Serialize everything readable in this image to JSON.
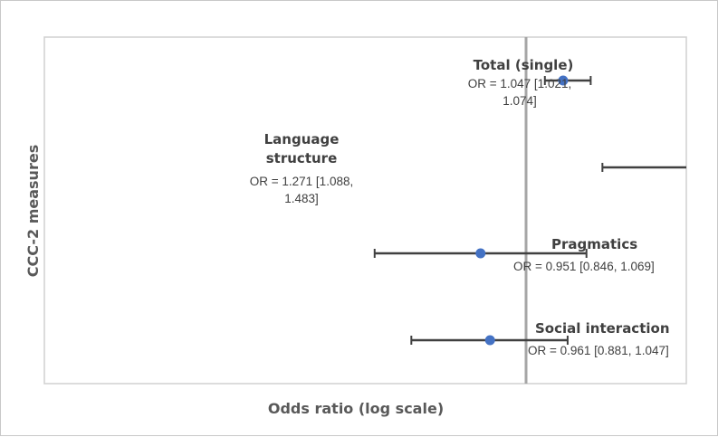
{
  "chart_data": {
    "type": "scatter",
    "variant": "forest-plot",
    "xlabel": "Odds ratio (log scale)",
    "ylabel": "CCC-2 measures",
    "x_scale": "log",
    "reference_line": 1.0,
    "grid": false,
    "legend": "none",
    "marker_color": "#4472C4",
    "errorbar_color": "#404040",
    "points": [
      {
        "name": "Total (single)",
        "label_lines": [
          "Total (single)"
        ],
        "or": 1.047,
        "lower": 1.021,
        "upper": 1.074,
        "or_lines": [
          "OR = 1.047 [1.021,",
          "1.074]"
        ]
      },
      {
        "name": "Language structure",
        "label_lines": [
          "Language",
          "structure"
        ],
        "or": 1.271,
        "lower": 1.088,
        "upper": 1.483,
        "or_lines": [
          "OR = 1.271 [1.088,",
          "1.483]"
        ]
      },
      {
        "name": "Pragmatics",
        "label_lines": [
          "Pragmatics"
        ],
        "or": 0.951,
        "lower": 0.846,
        "upper": 1.069,
        "or_lines": [
          "OR = 0.951 [0.846, 1.069]"
        ]
      },
      {
        "name": "Social interaction",
        "label_lines": [
          "Social interaction"
        ],
        "or": 0.961,
        "lower": 0.881,
        "upper": 1.047,
        "or_lines": [
          "OR = 0.961 [0.881, 1.047]"
        ]
      }
    ]
  }
}
